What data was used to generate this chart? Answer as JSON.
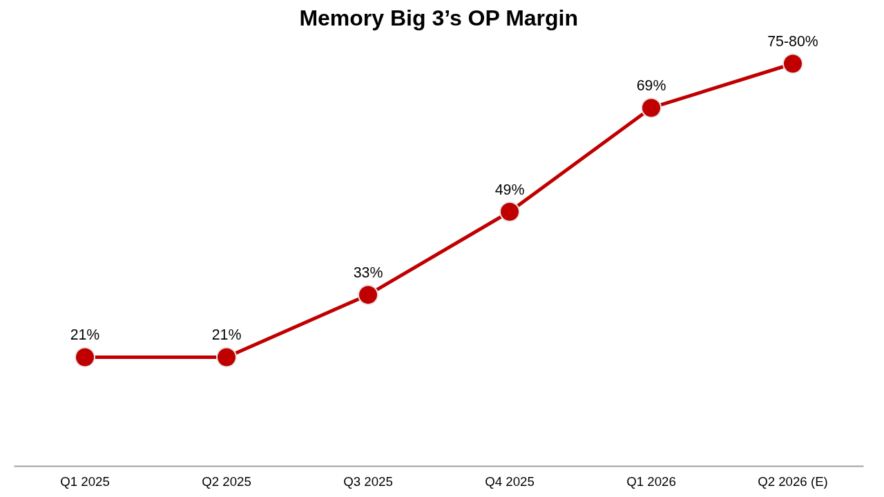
{
  "chart_data": {
    "type": "line",
    "title": "Memory Big 3’s OP Margin",
    "categories": [
      "Q1 2025",
      "Q2 2025",
      "Q3 2025",
      "Q4 2025",
      "Q1 2026",
      "Q2 2026 (E)"
    ],
    "series": [
      {
        "color": "#c00000",
        "values": [
          21,
          21,
          33,
          49,
          69,
          77.5
        ],
        "value_labels": [
          "21%",
          "21%",
          "33%",
          "49%",
          "69%",
          null
        ]
      }
    ],
    "annotations": [
      {
        "text": "75-80%",
        "x": "Q2 2026 (E)",
        "y": 77.5
      }
    ],
    "tick_labels": "x",
    "grid": false,
    "marker": "circle",
    "line_style": "solid"
  }
}
